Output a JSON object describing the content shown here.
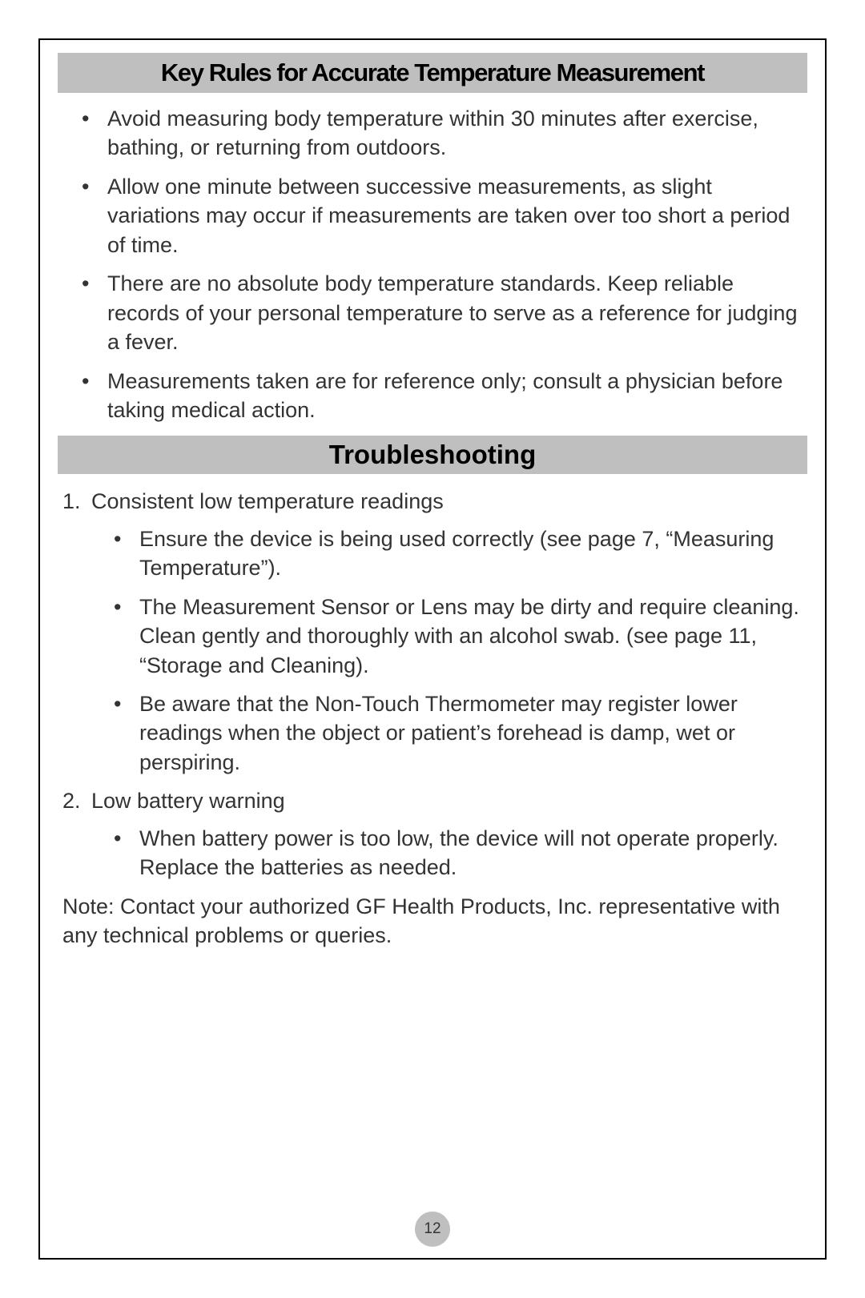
{
  "page_number": "12",
  "colors": {
    "heading_bg": "#bfbfbf",
    "text": "#333333",
    "border": "#000000",
    "background": "#ffffff"
  },
  "typography": {
    "heading1_fontsize": 31,
    "heading2_fontsize": 33,
    "body_fontsize": 27,
    "pagenum_fontsize": 19,
    "font_family": "Arial"
  },
  "section1": {
    "heading": "Key Rules for Accurate Temperature Measurement",
    "bullets": [
      "Avoid measuring body temperature within 30 minutes after exercise, bathing, or returning from outdoors.",
      "Allow one minute between successive measurements, as slight variations may occur if measurements are taken over too short a period of time.",
      "There are no absolute body temperature standards. Keep reliable records of your personal temperature to serve as a reference for judging a fever.",
      "Measurements taken are for reference only; consult a physician before taking medical action."
    ]
  },
  "section2": {
    "heading": "Troubleshooting",
    "items": [
      {
        "title": "Consistent low temperature readings",
        "subbullets": [
          "Ensure the device is being used correctly (see page 7, “Measuring Temperature”).",
          "The Measurement Sensor or Lens may be dirty and require cleaning. Clean gently and thoroughly with an alcohol swab.  (see page 11, “Storage and Cleaning).",
          "Be aware that the Non-Touch Thermometer may register lower readings when the object or patient’s forehead is damp, wet or perspiring."
        ]
      },
      {
        "title": "Low battery warning",
        "subbullets": [
          "When battery power is too low, the device will not operate properly. Replace the batteries as needed."
        ]
      }
    ],
    "note": "Note: Contact your authorized GF Health Products, Inc. representative with any technical problems or queries."
  }
}
